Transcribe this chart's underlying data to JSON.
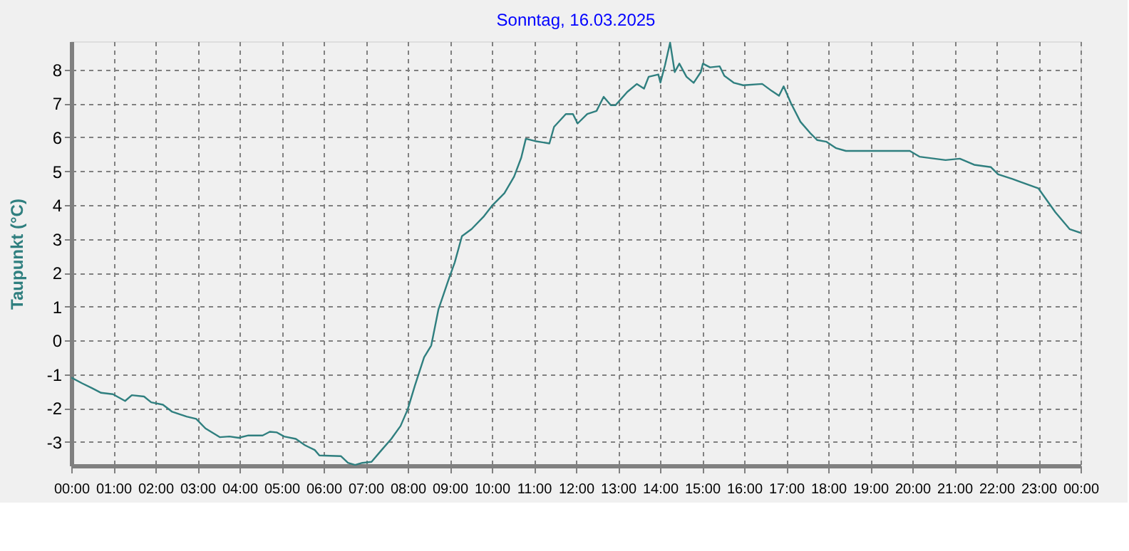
{
  "chart_data": {
    "type": "line",
    "title": "Sonntag, 16.03.2025",
    "ylabel": "Taupunkt  (°C)",
    "xlim": [
      0,
      24
    ],
    "ylim": [
      -3.7,
      8.84
    ],
    "xticks": [
      {
        "value": 0,
        "label": "00:00"
      },
      {
        "value": 1,
        "label": "01:00"
      },
      {
        "value": 2,
        "label": "02:00"
      },
      {
        "value": 3,
        "label": "03:00"
      },
      {
        "value": 4,
        "label": "04:00"
      },
      {
        "value": 5,
        "label": "05:00"
      },
      {
        "value": 6,
        "label": "06:00"
      },
      {
        "value": 7,
        "label": "07:00"
      },
      {
        "value": 8,
        "label": "08:00"
      },
      {
        "value": 9,
        "label": "09:00"
      },
      {
        "value": 10,
        "label": "10:00"
      },
      {
        "value": 11,
        "label": "11:00"
      },
      {
        "value": 12,
        "label": "12:00"
      },
      {
        "value": 13,
        "label": "13:00"
      },
      {
        "value": 14,
        "label": "14:00"
      },
      {
        "value": 15,
        "label": "15:00"
      },
      {
        "value": 16,
        "label": "16:00"
      },
      {
        "value": 17,
        "label": "17:00"
      },
      {
        "value": 18,
        "label": "18:00"
      },
      {
        "value": 19,
        "label": "19:00"
      },
      {
        "value": 20,
        "label": "20:00"
      },
      {
        "value": 21,
        "label": "21:00"
      },
      {
        "value": 22,
        "label": "22:00"
      },
      {
        "value": 23,
        "label": "23:00"
      },
      {
        "value": 24,
        "label": "00:00"
      }
    ],
    "yticks": [
      -3,
      -2,
      -1,
      0,
      1,
      2,
      3,
      4,
      5,
      6,
      7,
      8
    ],
    "grid": true,
    "line_style": "solid",
    "series": [
      {
        "color": "#2f7f7f",
        "x": [
          0,
          0.26,
          0.49,
          0.71,
          0.99,
          1.28,
          1.44,
          1.73,
          1.9,
          2.18,
          2.4,
          2.74,
          2.97,
          3.19,
          3.53,
          3.76,
          3.98,
          4.21,
          4.55,
          4.72,
          4.89,
          5.06,
          5.34,
          5.56,
          5.79,
          5.9,
          6.41,
          6.58,
          6.75,
          6.92,
          7.14,
          7.38,
          7.61,
          7.83,
          8.0,
          8.17,
          8.39,
          8.56,
          8.73,
          8.96,
          9.12,
          9.29,
          9.52,
          9.8,
          10.02,
          10.3,
          10.53,
          10.7,
          10.81,
          11.03,
          11.37,
          11.48,
          11.76,
          11.93,
          12.04,
          12.27,
          12.49,
          12.66,
          12.83,
          12.94,
          13.22,
          13.45,
          13.62,
          13.73,
          13.96,
          14.01,
          14.12,
          14.24,
          14.35,
          14.46,
          14.63,
          14.8,
          14.97,
          15.02,
          15.19,
          15.42,
          15.53,
          15.76,
          15.98,
          16.43,
          16.66,
          16.83,
          16.94,
          17.11,
          17.34,
          17.57,
          17.74,
          17.96,
          18.19,
          18.42,
          18.98,
          19.94,
          20.17,
          20.79,
          21.13,
          21.47,
          21.87,
          22.04,
          22.38,
          23.0,
          23.4,
          23.74,
          24
        ],
        "values": [
          -1.1,
          -1.27,
          -1.41,
          -1.55,
          -1.59,
          -1.79,
          -1.62,
          -1.66,
          -1.83,
          -1.9,
          -2.11,
          -2.25,
          -2.32,
          -2.6,
          -2.86,
          -2.84,
          -2.88,
          -2.81,
          -2.81,
          -2.7,
          -2.72,
          -2.84,
          -2.91,
          -3.1,
          -3.24,
          -3.4,
          -3.42,
          -3.62,
          -3.68,
          -3.62,
          -3.59,
          -3.24,
          -2.91,
          -2.53,
          -2.04,
          -1.34,
          -0.5,
          -0.15,
          0.91,
          1.75,
          2.31,
          3.08,
          3.29,
          3.65,
          4.0,
          4.35,
          4.84,
          5.4,
          5.96,
          5.89,
          5.82,
          6.31,
          6.69,
          6.69,
          6.41,
          6.69,
          6.78,
          7.2,
          6.95,
          6.95,
          7.34,
          7.58,
          7.44,
          7.79,
          7.86,
          7.62,
          8.14,
          8.8,
          7.93,
          8.18,
          7.79,
          7.61,
          7.93,
          8.18,
          8.07,
          8.1,
          7.82,
          7.61,
          7.54,
          7.58,
          7.37,
          7.23,
          7.51,
          7.02,
          6.46,
          6.13,
          5.92,
          5.87,
          5.68,
          5.6,
          5.6,
          5.6,
          5.43,
          5.33,
          5.37,
          5.19,
          5.12,
          4.91,
          4.77,
          4.49,
          3.79,
          3.29,
          3.18
        ]
      }
    ]
  }
}
